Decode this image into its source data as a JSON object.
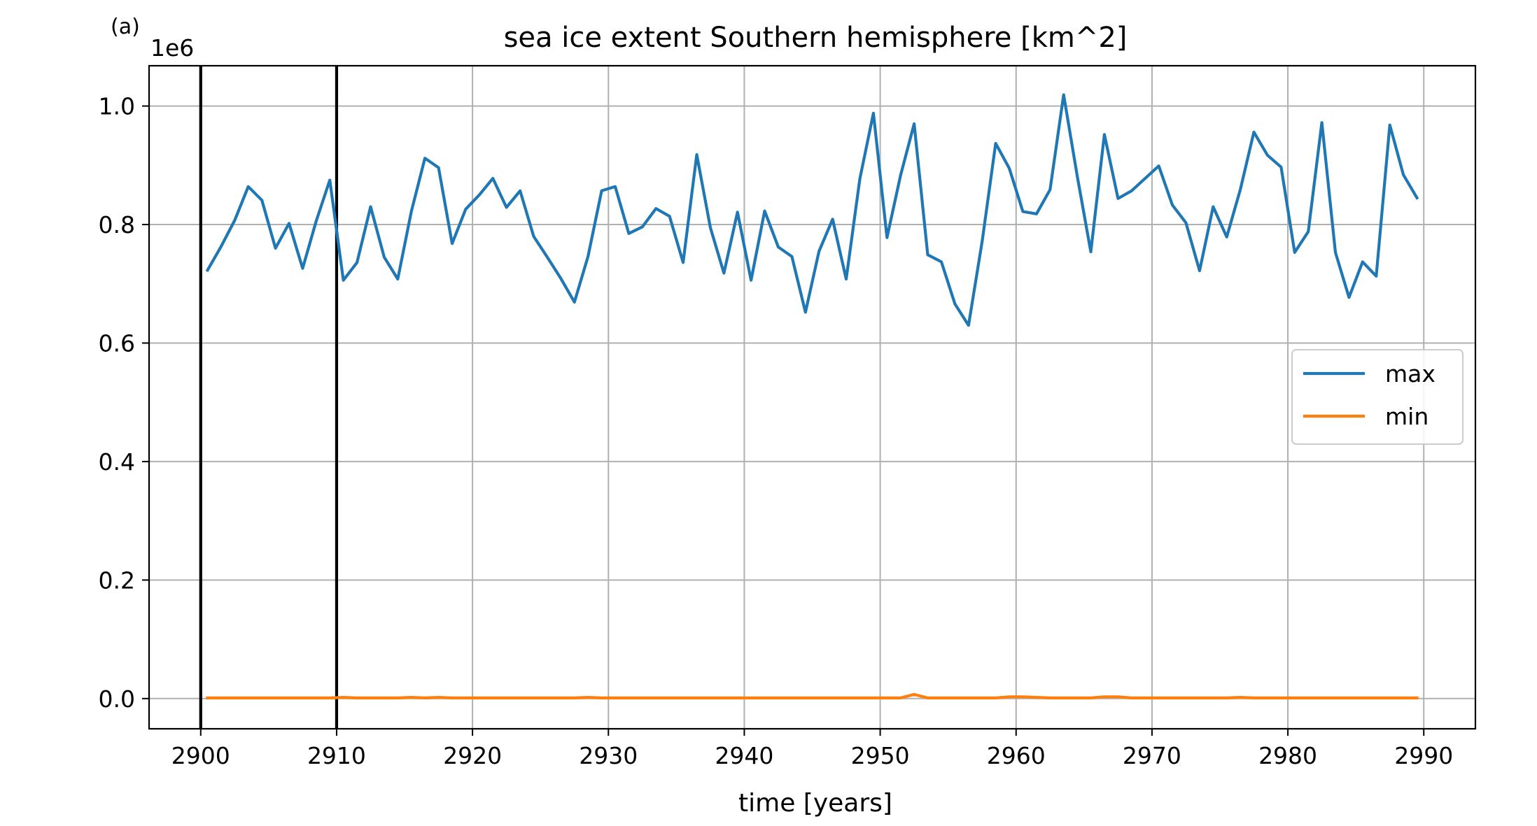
{
  "panel_label": "(a)",
  "chart_data": {
    "type": "line",
    "title": "sea ice extent Southern hemisphere [km^2]",
    "xlabel": "time [years]",
    "ylabel": "",
    "y_offset_label": "1e6",
    "xlim": [
      2896.2,
      2993.8
    ],
    "ylim": [
      -0.051,
      1.068
    ],
    "y_scale_factor": 1000000,
    "x_ticks": [
      2900,
      2910,
      2920,
      2930,
      2940,
      2950,
      2960,
      2970,
      2980,
      2990
    ],
    "x_tick_labels": [
      "2900",
      "2910",
      "2920",
      "2930",
      "2940",
      "2950",
      "2960",
      "2970",
      "2980",
      "2990"
    ],
    "y_ticks": [
      0.0,
      0.2,
      0.4,
      0.6,
      0.8,
      1.0
    ],
    "y_tick_labels": [
      "0.0",
      "0.2",
      "0.4",
      "0.6",
      "0.8",
      "1.0"
    ],
    "grid": true,
    "legend_position": "center-right",
    "vertical_lines": [
      2900,
      2910
    ],
    "vertical_line_color": "#000000",
    "x": [
      2900.5,
      2901.5,
      2902.5,
      2903.5,
      2904.5,
      2905.5,
      2906.5,
      2907.5,
      2908.5,
      2909.5,
      2910.5,
      2911.5,
      2912.5,
      2913.5,
      2914.5,
      2915.5,
      2916.5,
      2917.5,
      2918.5,
      2919.5,
      2920.5,
      2921.5,
      2922.5,
      2923.5,
      2924.5,
      2925.5,
      2926.5,
      2927.5,
      2928.5,
      2929.5,
      2930.5,
      2931.5,
      2932.5,
      2933.5,
      2934.5,
      2935.5,
      2936.5,
      2937.5,
      2938.5,
      2939.5,
      2940.5,
      2941.5,
      2942.5,
      2943.5,
      2944.5,
      2945.5,
      2946.5,
      2947.5,
      2948.5,
      2949.5,
      2950.5,
      2951.5,
      2952.5,
      2953.5,
      2954.5,
      2955.5,
      2956.5,
      2957.5,
      2958.5,
      2959.5,
      2960.5,
      2961.5,
      2962.5,
      2963.5,
      2964.5,
      2965.5,
      2966.5,
      2967.5,
      2968.5,
      2969.5,
      2970.5,
      2971.5,
      2972.5,
      2973.5,
      2974.5,
      2975.5,
      2976.5,
      2977.5,
      2978.5,
      2979.5,
      2980.5,
      2981.5,
      2982.5,
      2983.5,
      2984.5,
      2985.5,
      2986.5,
      2987.5,
      2988.5,
      2989.5
    ],
    "series": [
      {
        "name": "max",
        "color": "#1f77b4",
        "values": [
          0.723,
          0.763,
          0.807,
          0.864,
          0.841,
          0.76,
          0.802,
          0.726,
          0.806,
          0.875,
          0.706,
          0.736,
          0.83,
          0.745,
          0.708,
          0.822,
          0.912,
          0.896,
          0.768,
          0.826,
          0.85,
          0.878,
          0.829,
          0.857,
          0.78,
          0.745,
          0.709,
          0.669,
          0.746,
          0.857,
          0.864,
          0.785,
          0.796,
          0.827,
          0.814,
          0.736,
          0.918,
          0.795,
          0.718,
          0.821,
          0.706,
          0.823,
          0.762,
          0.746,
          0.652,
          0.755,
          0.809,
          0.708,
          0.877,
          0.988,
          0.778,
          0.883,
          0.97,
          0.749,
          0.737,
          0.666,
          0.63,
          0.771,
          0.937,
          0.895,
          0.822,
          0.818,
          0.859,
          1.019,
          0.882,
          0.754,
          0.952,
          0.844,
          0.857,
          0.878,
          0.899,
          0.833,
          0.803,
          0.722,
          0.83,
          0.779,
          0.859,
          0.956,
          0.917,
          0.897,
          0.753,
          0.788,
          0.972,
          0.753,
          0.677,
          0.737,
          0.713,
          0.968,
          0.884,
          0.845
        ]
      },
      {
        "name": "min",
        "color": "#ff7f0e",
        "values": [
          0.001,
          0.001,
          0.001,
          0.001,
          0.001,
          0.001,
          0.001,
          0.001,
          0.001,
          0.001,
          0.002,
          0.001,
          0.001,
          0.001,
          0.001,
          0.002,
          0.001,
          0.002,
          0.001,
          0.001,
          0.001,
          0.001,
          0.001,
          0.001,
          0.001,
          0.001,
          0.001,
          0.001,
          0.002,
          0.001,
          0.001,
          0.001,
          0.001,
          0.001,
          0.001,
          0.001,
          0.001,
          0.001,
          0.001,
          0.001,
          0.001,
          0.001,
          0.001,
          0.001,
          0.001,
          0.001,
          0.001,
          0.001,
          0.001,
          0.001,
          0.001,
          0.001,
          0.007,
          0.001,
          0.001,
          0.001,
          0.001,
          0.001,
          0.001,
          0.003,
          0.003,
          0.002,
          0.001,
          0.001,
          0.001,
          0.001,
          0.003,
          0.003,
          0.001,
          0.001,
          0.001,
          0.001,
          0.001,
          0.001,
          0.001,
          0.001,
          0.002,
          0.001,
          0.001,
          0.001,
          0.001,
          0.001,
          0.001,
          0.001,
          0.001,
          0.001,
          0.001,
          0.001,
          0.001,
          0.001
        ]
      }
    ]
  }
}
